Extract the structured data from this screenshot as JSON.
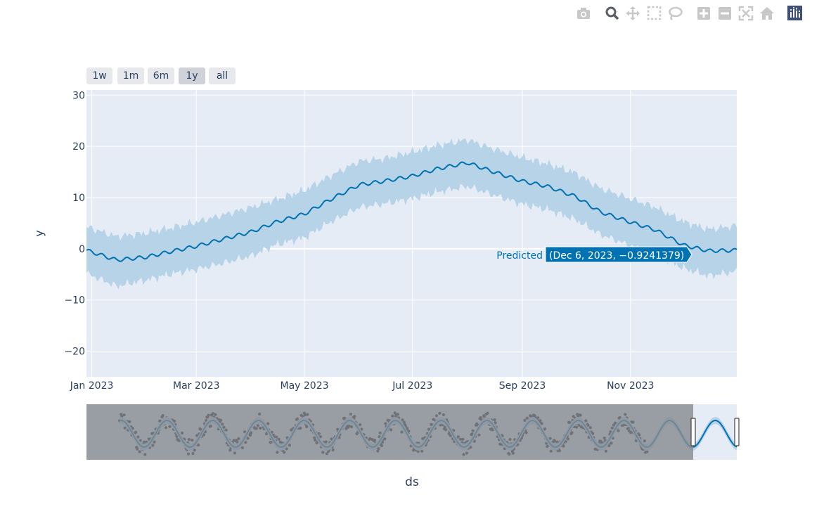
{
  "modebar": {
    "buttons": [
      "camera-icon",
      "zoom-icon",
      "pan-icon",
      "box-select-icon",
      "lasso-icon",
      "zoom-in-icon",
      "zoom-out-icon",
      "autoscale-icon",
      "reset-axes-icon",
      "plotly-logo-icon"
    ]
  },
  "range_selector": {
    "buttons": [
      {
        "label": "1w",
        "active": false
      },
      {
        "label": "1m",
        "active": false
      },
      {
        "label": "6m",
        "active": false
      },
      {
        "label": "1y",
        "active": true
      },
      {
        "label": "all",
        "active": false
      }
    ]
  },
  "colors": {
    "plot_bg": "#e5ecf6",
    "line": "#0072b2",
    "band": "#b6d3e8",
    "grid": "#ffffff",
    "rangeslider_mask": "#878b91",
    "points": "#000000"
  },
  "hover": {
    "series": "Predicted",
    "text": "(Dec 6, 2023, −0.9241379)"
  },
  "chart_data": {
    "type": "line",
    "xlabel": "ds",
    "ylabel": "y",
    "xlim": [
      "2022-12-29",
      "2023-12-31"
    ],
    "ylim": [
      -25,
      31
    ],
    "x_ticks": [
      "Jan 2023",
      "Mar 2023",
      "May 2023",
      "Jul 2023",
      "Sep 2023",
      "Nov 2023"
    ],
    "y_ticks": [
      "30",
      "20",
      "10",
      "0",
      "−10",
      "−20"
    ],
    "grid": true,
    "series": [
      {
        "name": "Predicted",
        "x": [
          "2022-12-29",
          "2023-01-15",
          "2023-02-01",
          "2023-02-15",
          "2023-03-01",
          "2023-03-15",
          "2023-04-01",
          "2023-04-15",
          "2023-05-01",
          "2023-05-15",
          "2023-06-01",
          "2023-06-15",
          "2023-07-01",
          "2023-07-15",
          "2023-08-01",
          "2023-08-15",
          "2023-09-01",
          "2023-09-15",
          "2023-10-01",
          "2023-10-15",
          "2023-11-01",
          "2023-11-15",
          "2023-12-01",
          "2023-12-15",
          "2023-12-31"
        ],
        "values": [
          -0.3,
          -2.2,
          -1.6,
          -0.5,
          0.5,
          1.8,
          3.3,
          5.2,
          6.8,
          9.5,
          12.5,
          13.2,
          14.2,
          15.6,
          16.8,
          15.1,
          13.2,
          12.2,
          10.2,
          7.2,
          5.2,
          3.7,
          0.7,
          -0.4,
          -0.3
        ],
        "lower": [
          -4.8,
          -7.3,
          -6.1,
          -4.9,
          -4.0,
          -2.9,
          -1.4,
          0.8,
          2.2,
          5.1,
          8.1,
          8.8,
          9.8,
          11.1,
          12.2,
          10.6,
          8.7,
          7.7,
          5.7,
          2.8,
          0.6,
          -0.9,
          -3.8,
          -5.3,
          -4.4
        ],
        "upper": [
          4.3,
          2.4,
          3.1,
          4.1,
          5.2,
          6.5,
          8.1,
          9.6,
          11.4,
          14.1,
          17.1,
          17.6,
          18.9,
          20.2,
          21.3,
          19.6,
          17.8,
          16.6,
          14.8,
          11.8,
          9.8,
          8.1,
          5.3,
          3.8,
          4.5
        ]
      }
    ],
    "range_slider": {
      "visible_window": [
        "2023-12-01",
        "2023-12-31"
      ]
    }
  }
}
